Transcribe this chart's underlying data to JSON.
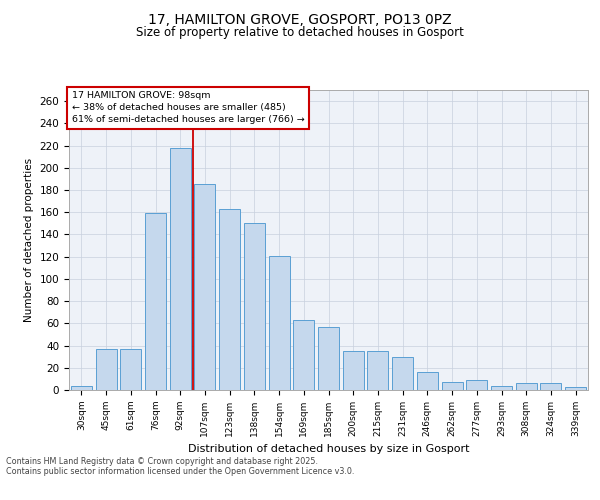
{
  "title1": "17, HAMILTON GROVE, GOSPORT, PO13 0PZ",
  "title2": "Size of property relative to detached houses in Gosport",
  "xlabel": "Distribution of detached houses by size in Gosport",
  "ylabel": "Number of detached properties",
  "categories": [
    "30sqm",
    "45sqm",
    "61sqm",
    "76sqm",
    "92sqm",
    "107sqm",
    "123sqm",
    "138sqm",
    "154sqm",
    "169sqm",
    "185sqm",
    "200sqm",
    "215sqm",
    "231sqm",
    "246sqm",
    "262sqm",
    "277sqm",
    "293sqm",
    "308sqm",
    "324sqm",
    "339sqm"
  ],
  "values": [
    4,
    37,
    37,
    159,
    218,
    185,
    163,
    150,
    121,
    63,
    57,
    35,
    35,
    30,
    16,
    7,
    9,
    4,
    6,
    6,
    3
  ],
  "bar_color": "#c5d8ed",
  "bar_edge_color": "#5a9fd4",
  "ref_line_color": "#cc0000",
  "annotation_title": "17 HAMILTON GROVE: 98sqm",
  "annotation_line1": "← 38% of detached houses are smaller (485)",
  "annotation_line2": "61% of semi-detached houses are larger (766) →",
  "annotation_box_color": "#ffffff",
  "annotation_box_edge": "#cc0000",
  "ylim": [
    0,
    270
  ],
  "yticks": [
    0,
    20,
    40,
    60,
    80,
    100,
    120,
    140,
    160,
    180,
    200,
    220,
    240,
    260
  ],
  "footer1": "Contains HM Land Registry data © Crown copyright and database right 2025.",
  "footer2": "Contains public sector information licensed under the Open Government Licence v3.0.",
  "bg_color": "#eef2f8",
  "fig_bg_color": "#ffffff"
}
